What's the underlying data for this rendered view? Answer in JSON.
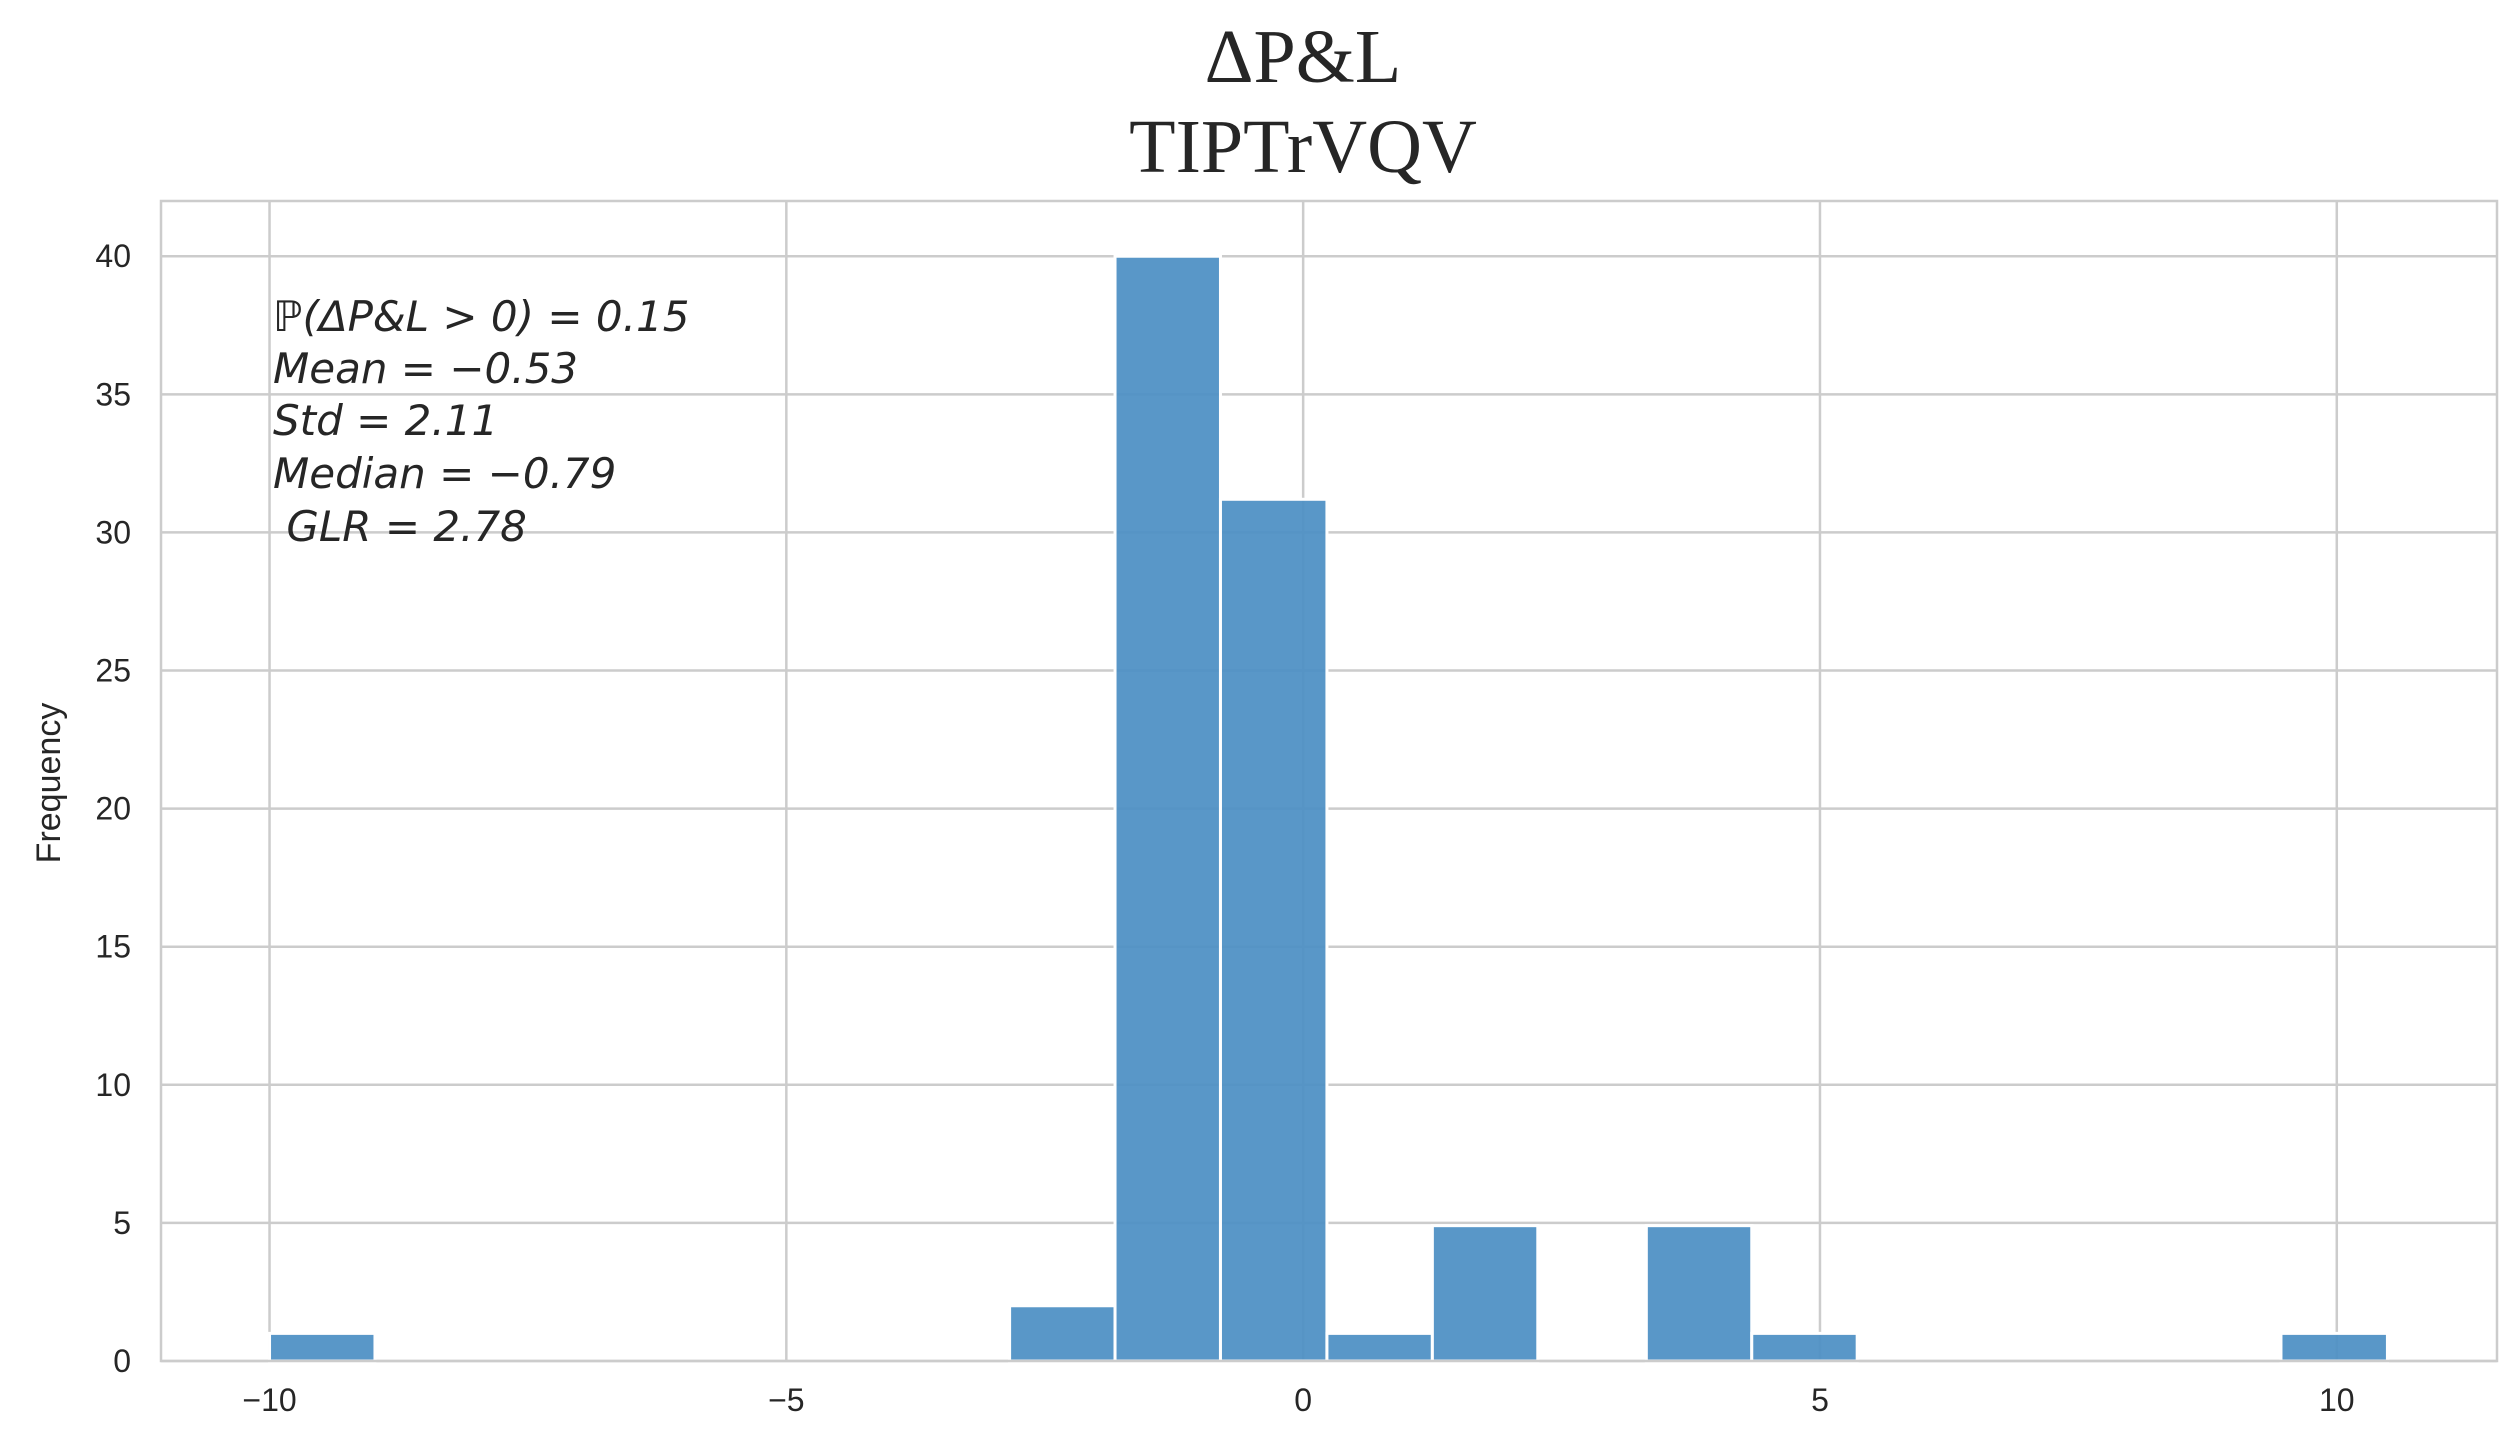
{
  "chart_data": {
    "type": "bar",
    "title": "ΔP&L",
    "subtitle": "TIPTrVQV",
    "xlabel": "",
    "ylabel": "Frequency",
    "xlim": [
      -11.05,
      11.55
    ],
    "ylim": [
      0,
      42
    ],
    "x_ticks": [
      -10,
      -5,
      0,
      5,
      10
    ],
    "x_tick_labels": [
      "−10",
      "−5",
      "0",
      "5",
      "10"
    ],
    "y_ticks": [
      0,
      5,
      10,
      15,
      20,
      25,
      30,
      35,
      40
    ],
    "y_tick_labels": [
      "0",
      "5",
      "10",
      "15",
      "20",
      "25",
      "30",
      "35",
      "40"
    ],
    "grid": true,
    "bar_color": "#4c8fc4",
    "bins": [
      {
        "x0": -10.0,
        "x1": -8.98,
        "count": 1
      },
      {
        "x0": -2.84,
        "x1": -1.82,
        "count": 2
      },
      {
        "x0": -1.82,
        "x1": -0.8,
        "count": 40
      },
      {
        "x0": -0.8,
        "x1": 0.23,
        "count": 31.2
      },
      {
        "x0": 0.23,
        "x1": 1.25,
        "count": 1
      },
      {
        "x0": 1.25,
        "x1": 2.27,
        "count": 4.9
      },
      {
        "x0": 3.32,
        "x1": 4.34,
        "count": 4.9
      },
      {
        "x0": 4.34,
        "x1": 5.36,
        "count": 1
      },
      {
        "x0": 9.46,
        "x1": 10.49,
        "count": 1
      }
    ],
    "annotations": [
      "ℙ(ΔP&L > 0) = 0.15",
      "Mean = −0.53",
      "Std = 2.11",
      "Median = −0.79",
      " GLR = 2.78"
    ]
  }
}
